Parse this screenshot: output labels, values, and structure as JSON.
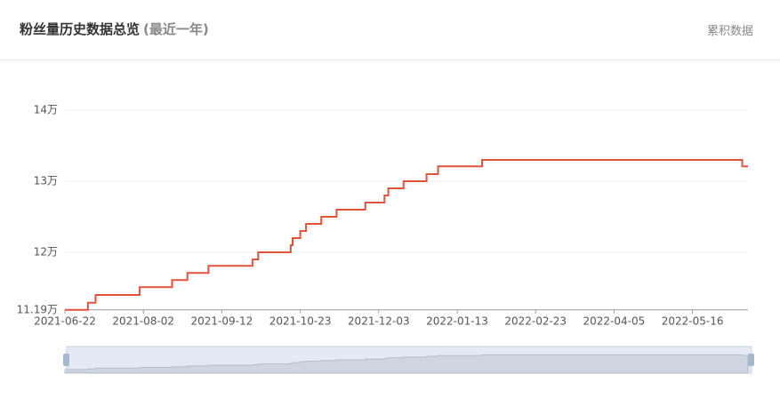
{
  "header": {
    "title": "粉丝量历史数据总览",
    "subtitle": "(最近一年)",
    "toggle": "累积数据"
  },
  "chart_data": {
    "type": "line",
    "step": true,
    "x": [
      "2021-06-22",
      "2021-07-04",
      "2021-07-08",
      "2021-07-31",
      "2021-08-17",
      "2021-08-25",
      "2021-09-05",
      "2021-09-28",
      "2021-10-01",
      "2021-10-18",
      "2021-10-19",
      "2021-10-23",
      "2021-10-26",
      "2021-11-03",
      "2021-11-11",
      "2021-11-26",
      "2021-12-06",
      "2021-12-08",
      "2021-12-16",
      "2021-12-28",
      "2022-01-03",
      "2022-01-26",
      "2022-06-11",
      "2022-06-14"
    ],
    "series": [
      {
        "color": "#e0533f",
        "values": [
          11.19,
          11.29,
          11.4,
          11.51,
          11.61,
          11.71,
          11.81,
          11.9,
          12.0,
          12.1,
          12.2,
          12.3,
          12.4,
          12.5,
          12.6,
          12.7,
          12.8,
          12.9,
          13.0,
          13.1,
          13.21,
          13.3,
          13.21,
          13.21
        ]
      }
    ],
    "xlim": [
      "2021-06-22",
      "2022-06-14"
    ],
    "xticks": [
      "2021-06-22",
      "2021-08-02",
      "2021-09-12",
      "2021-10-23",
      "2021-12-03",
      "2022-01-13",
      "2022-02-23",
      "2022-04-05",
      "2022-05-16"
    ],
    "ylim": [
      11.19,
      14
    ],
    "yticks": [
      {
        "value": 11.19,
        "label": "11.19万"
      },
      {
        "value": 12,
        "label": "12万"
      },
      {
        "value": 13,
        "label": "13万"
      },
      {
        "value": 14,
        "label": "14万"
      }
    ],
    "grid": true
  }
}
